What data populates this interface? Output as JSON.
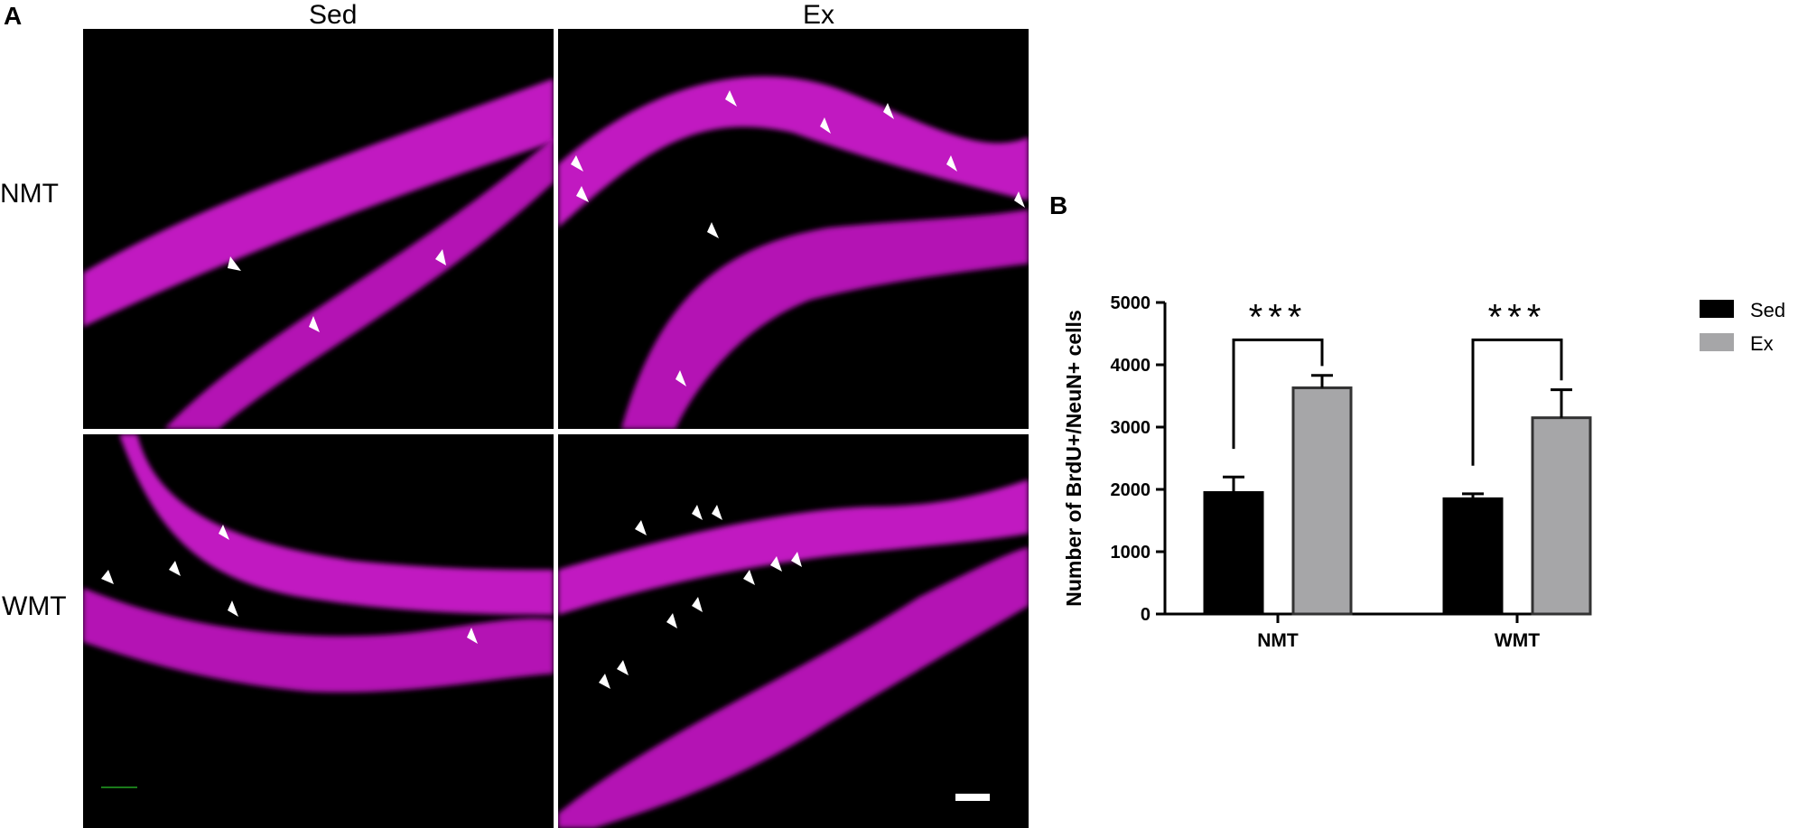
{
  "panel_a": {
    "letter": "A",
    "column_labels": [
      "Sed",
      "Ex"
    ],
    "row_labels": [
      "NMT",
      "WMT"
    ],
    "image_description_icons": [
      "micrograph-icon",
      "arrow-marker-icon",
      "scale-bar-icon"
    ]
  },
  "panel_b": {
    "letter": "B"
  },
  "colors": {
    "tissue": "#d21ad2",
    "sed_bar": "#000000",
    "ex_bar": "#a6a6a8",
    "ex_bar_edge": "#333333",
    "background": "#000000"
  },
  "chart_data": {
    "type": "bar",
    "categories": [
      "NMT",
      "WMT"
    ],
    "series": [
      {
        "name": "Sed",
        "values": [
          1950,
          1850
        ],
        "errors": [
          250,
          80
        ]
      },
      {
        "name": "Ex",
        "values": [
          3630,
          3150
        ],
        "errors": [
          200,
          450
        ]
      }
    ],
    "title": "",
    "xlabel": "",
    "ylabel": "Number of BrdU+/NeuN+ cells",
    "ylim": [
      0,
      5000
    ],
    "yticks": [
      0,
      1000,
      2000,
      3000,
      4000,
      5000
    ],
    "significance": [
      "***",
      "***"
    ],
    "legend_position": "right",
    "grid": false
  }
}
